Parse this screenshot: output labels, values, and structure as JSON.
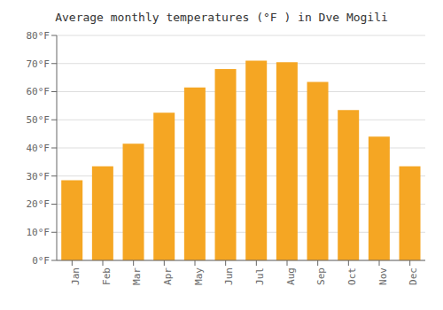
{
  "chart_data": {
    "type": "bar",
    "title": "Average monthly temperatures (°F ) in Dve Mogili",
    "categories": [
      "Jan",
      "Feb",
      "Mar",
      "Apr",
      "May",
      "Jun",
      "Jul",
      "Aug",
      "Sep",
      "Oct",
      "Nov",
      "Dec"
    ],
    "values": [
      28.5,
      33.5,
      41.5,
      52.5,
      61.5,
      68.0,
      71.0,
      70.5,
      63.5,
      53.5,
      44.0,
      33.5
    ],
    "color": "#F5A623",
    "ylim": [
      0,
      80
    ],
    "yticks": [
      {
        "value": 0,
        "label": "0°F"
      },
      {
        "value": 10,
        "label": "10°F"
      },
      {
        "value": 20,
        "label": "20°F"
      },
      {
        "value": 30,
        "label": "30°F"
      },
      {
        "value": 40,
        "label": "40°F"
      },
      {
        "value": 50,
        "label": "50°F"
      },
      {
        "value": 60,
        "label": "60°F"
      },
      {
        "value": 70,
        "label": "70°F"
      },
      {
        "value": 80,
        "label": "80°F"
      }
    ],
    "grid": true
  }
}
